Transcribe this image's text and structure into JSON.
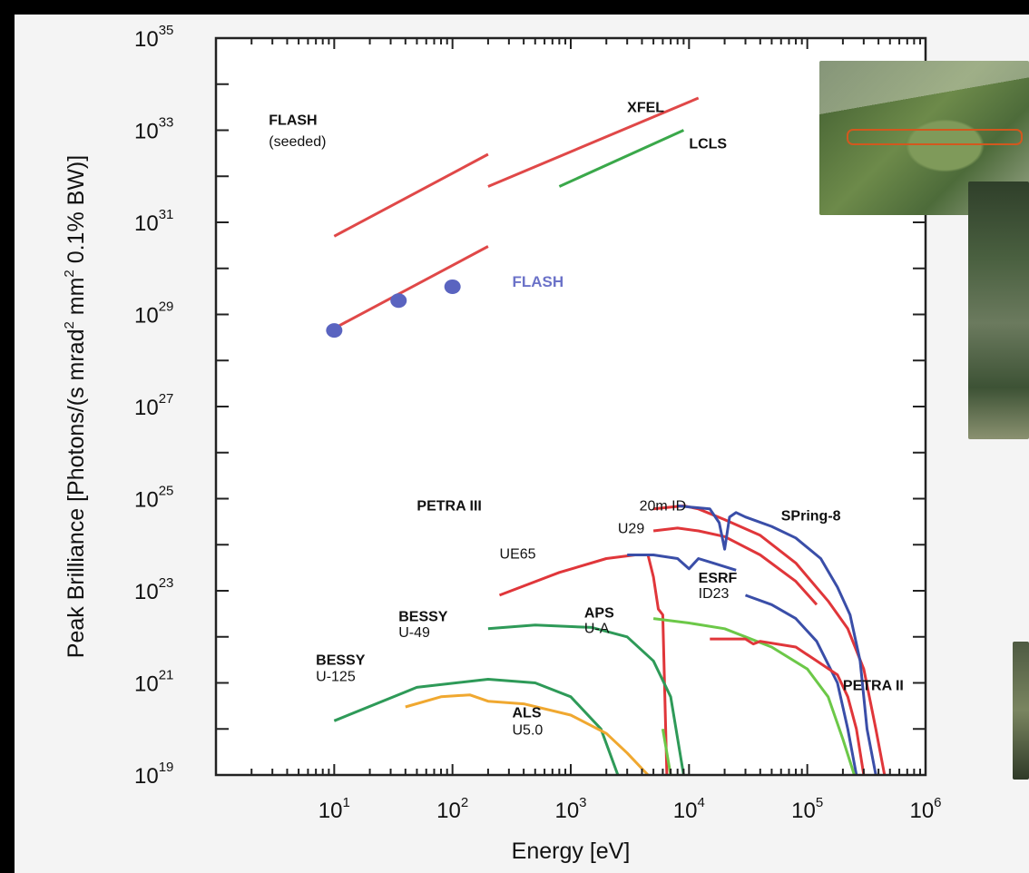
{
  "chart_data": {
    "type": "line",
    "title": "",
    "xlabel": "Energy  [eV]",
    "ylabel": "Peak Brilliance  [Photons/(s mrad² mm² 0.1% BW)]",
    "ylabel_parts": [
      "Peak Brilliance  [Photons/(s mrad",
      "2",
      " mm",
      "2",
      " 0.1% BW)]"
    ],
    "xscale": "log",
    "yscale": "log",
    "xlim": [
      1,
      1000000
    ],
    "ylim": [
      1e+19,
      1e+35
    ],
    "x_ticks": [
      {
        "base": "10",
        "exp": "1",
        "value": 10
      },
      {
        "base": "10",
        "exp": "2",
        "value": 100
      },
      {
        "base": "10",
        "exp": "3",
        "value": 1000
      },
      {
        "base": "10",
        "exp": "4",
        "value": 10000
      },
      {
        "base": "10",
        "exp": "5",
        "value": 100000
      },
      {
        "base": "10",
        "exp": "6",
        "value": 1000000
      }
    ],
    "y_ticks": [
      {
        "base": "10",
        "exp": "19",
        "value": 1e+19
      },
      {
        "base": "10",
        "exp": "21",
        "value": 1e+21
      },
      {
        "base": "10",
        "exp": "23",
        "value": 1e+23
      },
      {
        "base": "10",
        "exp": "25",
        "value": 1e+25
      },
      {
        "base": "10",
        "exp": "27",
        "value": 1e+27
      },
      {
        "base": "10",
        "exp": "29",
        "value": 1e+29
      },
      {
        "base": "10",
        "exp": "31",
        "value": 1e+31
      },
      {
        "base": "10",
        "exp": "33",
        "value": 1e+33
      },
      {
        "base": "10",
        "exp": "35",
        "value": 1e+35
      }
    ],
    "grid": false,
    "legend": "none",
    "colors": {
      "flash": "#e04848",
      "lcls": "#3aa84a",
      "storage_red": "#e0363a",
      "blue": "#3a4ea8",
      "green": "#2e9a58",
      "orange": "#f0a830",
      "light_green": "#6cc848",
      "dots": "#5a64c0",
      "flash_label": "#6b72c8"
    },
    "series": [
      {
        "key": "flash_seeded",
        "color": "#e04848",
        "points": [
          [
            10,
            5e+30
          ],
          [
            200,
            3e+32
          ]
        ]
      },
      {
        "key": "xfel",
        "color": "#e04848",
        "points": [
          [
            200,
            6e+31
          ],
          [
            12000,
            5e+33
          ]
        ]
      },
      {
        "key": "lcls",
        "color": "#3aa84a",
        "points": [
          [
            800,
            6e+31
          ],
          [
            9000,
            1e+33
          ]
        ]
      },
      {
        "key": "flash",
        "color": "#e04848",
        "points": [
          [
            10,
            5e+28
          ],
          [
            200,
            3e+30
          ]
        ]
      },
      {
        "key": "petra3_20m",
        "color": "#e0363a",
        "points": [
          [
            5000,
            6e+24
          ],
          [
            9000,
            7e+24
          ],
          [
            12000,
            6e+24
          ],
          [
            20000,
            3.5e+24
          ],
          [
            40000,
            1.6e+24
          ],
          [
            80000,
            4e+23
          ],
          [
            150000,
            6e+22
          ],
          [
            220000,
            1.5e+22
          ],
          [
            300000,
            2e+21
          ],
          [
            380000,
            1e+20
          ],
          [
            450000,
            1e+19
          ]
        ]
      },
      {
        "key": "petra3_u29",
        "color": "#e0363a",
        "points": [
          [
            5000,
            2e+24
          ],
          [
            8000,
            2.3e+24
          ],
          [
            12000,
            2e+24
          ],
          [
            20000,
            1.5e+24
          ],
          [
            40000,
            6e+23
          ],
          [
            80000,
            1.6e+23
          ],
          [
            120000,
            5e+22
          ]
        ]
      },
      {
        "key": "ue65",
        "color": "#e0363a",
        "points": [
          [
            250,
            8e+22
          ],
          [
            800,
            2.5e+23
          ],
          [
            2000,
            5e+23
          ],
          [
            3500,
            6e+23
          ],
          [
            4500,
            6e+23
          ],
          [
            5000,
            2e+23
          ],
          [
            5500,
            4e+22
          ],
          [
            6000,
            3e+22
          ],
          [
            6500,
            1e+19
          ]
        ]
      },
      {
        "key": "spring8",
        "color": "#3a4ea8",
        "points": [
          [
            8000,
            7e+24
          ],
          [
            15000,
            6e+24
          ],
          [
            18000,
            3e+24
          ],
          [
            20000,
            8e+23
          ],
          [
            22000,
            4e+24
          ],
          [
            25000,
            5e+24
          ],
          [
            30000,
            4e+24
          ],
          [
            50000,
            2.5e+24
          ],
          [
            80000,
            1.4e+24
          ],
          [
            130000,
            5e+23
          ],
          [
            180000,
            1.2e+23
          ],
          [
            230000,
            3e+22
          ],
          [
            280000,
            3e+21
          ],
          [
            320000,
            1e+20
          ],
          [
            380000,
            1e+19
          ]
        ]
      },
      {
        "key": "petra3_blue",
        "color": "#3a4ea8",
        "points": [
          [
            3000,
            6e+23
          ],
          [
            5000,
            6e+23
          ],
          [
            8000,
            5e+23
          ],
          [
            10000,
            3e+23
          ],
          [
            12000,
            5e+23
          ],
          [
            16000,
            4e+23
          ],
          [
            25000,
            2.8e+23
          ]
        ]
      },
      {
        "key": "esrf_id23",
        "color": "#3a4ea8",
        "points": [
          [
            30000,
            8e+22
          ],
          [
            50000,
            5e+22
          ],
          [
            80000,
            2.5e+22
          ],
          [
            120000,
            8e+21
          ],
          [
            180000,
            1e+21
          ],
          [
            220000,
            1e+20
          ],
          [
            260000,
            1e+19
          ]
        ]
      },
      {
        "key": "aps_ua",
        "color": "#6cc848",
        "points": [
          [
            5000,
            2.5e+22
          ],
          [
            10000,
            2e+22
          ],
          [
            20000,
            1.5e+22
          ],
          [
            50000,
            6e+21
          ],
          [
            100000,
            2e+21
          ],
          [
            150000,
            5e+20
          ],
          [
            200000,
            6e+19
          ],
          [
            250000,
            1e+19
          ]
        ]
      },
      {
        "key": "petra2",
        "color": "#e0363a",
        "points": [
          [
            15000,
            9e+21
          ],
          [
            30000,
            9e+21
          ],
          [
            35000,
            7e+21
          ],
          [
            40000,
            8e+21
          ],
          [
            80000,
            6e+21
          ],
          [
            120000,
            3e+21
          ],
          [
            180000,
            1.5e+21
          ],
          [
            220000,
            5e+20
          ],
          [
            260000,
            1e+20
          ],
          [
            300000,
            1e+19
          ]
        ]
      },
      {
        "key": "bessy_u49",
        "color": "#2e9a58",
        "points": [
          [
            200,
            1.5e+22
          ],
          [
            500,
            1.8e+22
          ],
          [
            1500,
            1.6e+22
          ],
          [
            3000,
            1e+22
          ],
          [
            5000,
            3e+21
          ],
          [
            7000,
            5e+20
          ],
          [
            9000,
            1e+19
          ]
        ]
      },
      {
        "key": "bessy_u125",
        "color": "#2e9a58",
        "points": [
          [
            10,
            1.5e+20
          ],
          [
            50,
            8e+20
          ],
          [
            200,
            1.2e+21
          ],
          [
            500,
            1e+21
          ],
          [
            1000,
            5e+20
          ],
          [
            1800,
            1e+20
          ],
          [
            2500,
            1e+19
          ]
        ]
      },
      {
        "key": "als_u50",
        "color": "#f0a830",
        "points": [
          [
            40,
            3e+20
          ],
          [
            80,
            5e+20
          ],
          [
            140,
            5.5e+20
          ],
          [
            200,
            4e+20
          ],
          [
            400,
            3.5e+20
          ],
          [
            1000,
            2e+20
          ],
          [
            2000,
            8e+19
          ],
          [
            3000,
            3e+19
          ],
          [
            4500,
            1e+19
          ]
        ]
      },
      {
        "key": "lcls_ext_green",
        "color": "#6cc848",
        "points": [
          [
            6000,
            1e+20
          ],
          [
            7000,
            1e+19
          ]
        ]
      }
    ],
    "flash_points": [
      [
        10,
        4.5e+28
      ],
      [
        35,
        2e+29
      ],
      [
        100,
        4e+29
      ]
    ],
    "annotations": [
      {
        "key": "xfel",
        "text": "XFEL",
        "bold": true,
        "x": 3000,
        "y": 2.5e+33
      },
      {
        "key": "flash_seeded_1",
        "text": "FLASH",
        "bold": true,
        "x": 2.8,
        "y": 1.3e+33
      },
      {
        "key": "flash_seeded_2",
        "text": "(seeded)",
        "bold": false,
        "x": 2.8,
        "y": 4.5e+32
      },
      {
        "key": "lcls",
        "text": "LCLS",
        "bold": true,
        "x": 10000,
        "y": 4e+32
      },
      {
        "key": "flash",
        "text": "FLASH",
        "bold": true,
        "x": 320,
        "y": 4e+29,
        "style": "flash"
      },
      {
        "key": "petra3",
        "text": "PETRA III",
        "bold": true,
        "x": 50,
        "y": 5.5e+24
      },
      {
        "key": "petra3_20m",
        "text": "20m ID",
        "bold": false,
        "x": 3800,
        "y": 5.5e+24
      },
      {
        "key": "u29",
        "text": "U29",
        "bold": false,
        "x": 2500,
        "y": 1.8e+24
      },
      {
        "key": "ue65",
        "text": "UE65",
        "bold": false,
        "x": 250,
        "y": 5e+23
      },
      {
        "key": "spring8",
        "text": "SPring-8",
        "bold": true,
        "x": 60000,
        "y": 3.4e+24
      },
      {
        "key": "esrf",
        "text": "ESRF",
        "bold": true,
        "x": 12000,
        "y": 1.5e+23
      },
      {
        "key": "id23",
        "text": "ID23",
        "bold": false,
        "x": 12000,
        "y": 7e+22
      },
      {
        "key": "aps",
        "text": "APS",
        "bold": true,
        "x": 1300,
        "y": 2.6e+22
      },
      {
        "key": "ua",
        "text": "U-A",
        "bold": false,
        "x": 1300,
        "y": 1.2e+22
      },
      {
        "key": "bessy_mid",
        "text": "BESSY",
        "bold": true,
        "x": 35,
        "y": 2.2e+22
      },
      {
        "key": "u49",
        "text": "U-49",
        "bold": false,
        "x": 35,
        "y": 1e+22
      },
      {
        "key": "bessy_low",
        "text": "BESSY",
        "bold": true,
        "x": 7,
        "y": 2.5e+21
      },
      {
        "key": "u125",
        "text": "U-125",
        "bold": false,
        "x": 7,
        "y": 1.1e+21
      },
      {
        "key": "als",
        "text": "ALS",
        "bold": true,
        "x": 320,
        "y": 1.8e+20
      },
      {
        "key": "u50",
        "text": "U5.0",
        "bold": false,
        "x": 320,
        "y": 7.5e+19
      },
      {
        "key": "petra2",
        "text": "PETRA II",
        "bold": true,
        "x": 200000,
        "y": 7e+20
      }
    ]
  }
}
